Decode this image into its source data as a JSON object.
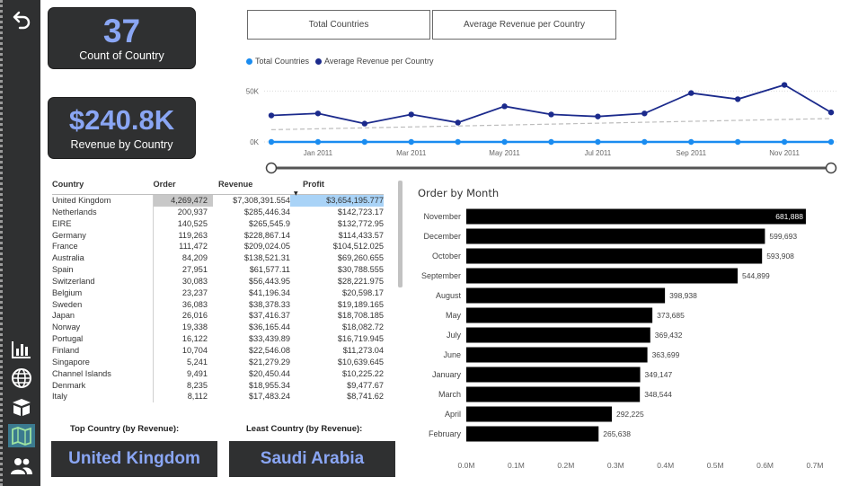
{
  "sidebar": {
    "items": [
      {
        "icon": "back-arrow-icon"
      },
      {
        "icon": "bar-chart-icon"
      },
      {
        "icon": "globe-icon"
      },
      {
        "icon": "box-icon"
      },
      {
        "icon": "map-icon"
      },
      {
        "icon": "users-icon"
      }
    ]
  },
  "kpis": {
    "count": {
      "value": "37",
      "label": "Count of Country"
    },
    "revenue": {
      "value": "$240.8K",
      "label": "Revenue by Country"
    }
  },
  "tabs": [
    {
      "label": "Total Countries"
    },
    {
      "label": "Average Revenue per Country"
    }
  ],
  "colors": {
    "total_countries": "#1a8cf0",
    "avg_revenue": "#1b2a8c",
    "dark": "#2f3031",
    "accent_text": "#8aa6f4"
  },
  "line_chart": {
    "legend": [
      "Total Countries",
      "Average Revenue per Country"
    ],
    "y_ticks": [
      "50K",
      "0K"
    ],
    "x_ticks": [
      "Jan 2011",
      "Mar 2011",
      "May 2011",
      "Jul 2011",
      "Sep 2011",
      "Nov 2011"
    ]
  },
  "chart_data": [
    {
      "type": "line",
      "x": [
        "Dec 2010",
        "Jan 2011",
        "Feb 2011",
        "Mar 2011",
        "Apr 2011",
        "May 2011",
        "Jun 2011",
        "Jul 2011",
        "Aug 2011",
        "Sep 2011",
        "Oct 2011",
        "Nov 2011",
        "Dec 2011"
      ],
      "series": [
        {
          "name": "Total Countries",
          "values": [
            0,
            0,
            0,
            0,
            0,
            0,
            0,
            0,
            0,
            0,
            0,
            0,
            0
          ]
        },
        {
          "name": "Average Revenue per Country",
          "values": [
            26000,
            28000,
            18000,
            27000,
            19000,
            35000,
            27000,
            25000,
            28000,
            48000,
            42000,
            56000,
            29000
          ]
        }
      ],
      "trend": [
        12000,
        23000
      ],
      "ylim": [
        0,
        60000
      ]
    },
    {
      "type": "bar",
      "title": "Order by Month",
      "categories": [
        "November",
        "December",
        "October",
        "September",
        "August",
        "May",
        "July",
        "June",
        "January",
        "March",
        "April",
        "February"
      ],
      "values": [
        681888,
        599693,
        593908,
        544899,
        398938,
        373685,
        369432,
        363699,
        349147,
        348544,
        292225,
        265638
      ],
      "value_labels": [
        "681,888",
        "599,693",
        "593,908",
        "544,899",
        "398,938",
        "373,685",
        "369,432",
        "363,699",
        "349,147",
        "348,544",
        "292,225",
        "265,638"
      ],
      "x_ticks": [
        "0.0M",
        "0.1M",
        "0.2M",
        "0.3M",
        "0.4M",
        "0.5M",
        "0.6M",
        "0.7M"
      ],
      "xlim": [
        0,
        700000
      ]
    }
  ],
  "table": {
    "headers": [
      "Country",
      "Order",
      "Revenue",
      "Profit"
    ],
    "rows": [
      [
        "United Kingdom",
        "4,269,472",
        "$7,308,391.554",
        "$3,654,195.777"
      ],
      [
        "Netherlands",
        "200,937",
        "$285,446.34",
        "$142,723.17"
      ],
      [
        "EIRE",
        "140,525",
        "$265,545.9",
        "$132,772.95"
      ],
      [
        "Germany",
        "119,263",
        "$228,867.14",
        "$114,433.57"
      ],
      [
        "France",
        "111,472",
        "$209,024.05",
        "$104,512.025"
      ],
      [
        "Australia",
        "84,209",
        "$138,521.31",
        "$69,260.655"
      ],
      [
        "Spain",
        "27,951",
        "$61,577.11",
        "$30,788.555"
      ],
      [
        "Switzerland",
        "30,083",
        "$56,443.95",
        "$28,221.975"
      ],
      [
        "Belgium",
        "23,237",
        "$41,196.34",
        "$20,598.17"
      ],
      [
        "Sweden",
        "36,083",
        "$38,378.33",
        "$19,189.165"
      ],
      [
        "Japan",
        "26,016",
        "$37,416.37",
        "$18,708.185"
      ],
      [
        "Norway",
        "19,338",
        "$36,165.44",
        "$18,082.72"
      ],
      [
        "Portugal",
        "16,122",
        "$33,439.89",
        "$16,719.945"
      ],
      [
        "Finland",
        "10,704",
        "$22,546.08",
        "$11,273.04"
      ],
      [
        "Singapore",
        "5,241",
        "$21,279.29",
        "$10,639.645"
      ],
      [
        "Channel Islands",
        "9,491",
        "$20,450.44",
        "$10,225.22"
      ],
      [
        "Denmark",
        "8,235",
        "$18,955.34",
        "$9,477.67"
      ],
      [
        "Italy",
        "8,112",
        "$17,483.24",
        "$8,741.62"
      ]
    ]
  },
  "bottom": {
    "top_label": "Top Country (by Revenue):",
    "top_value": "United Kingdom",
    "least_label": "Least  Country (by Revenue):",
    "least_value": "Saudi Arabia"
  }
}
